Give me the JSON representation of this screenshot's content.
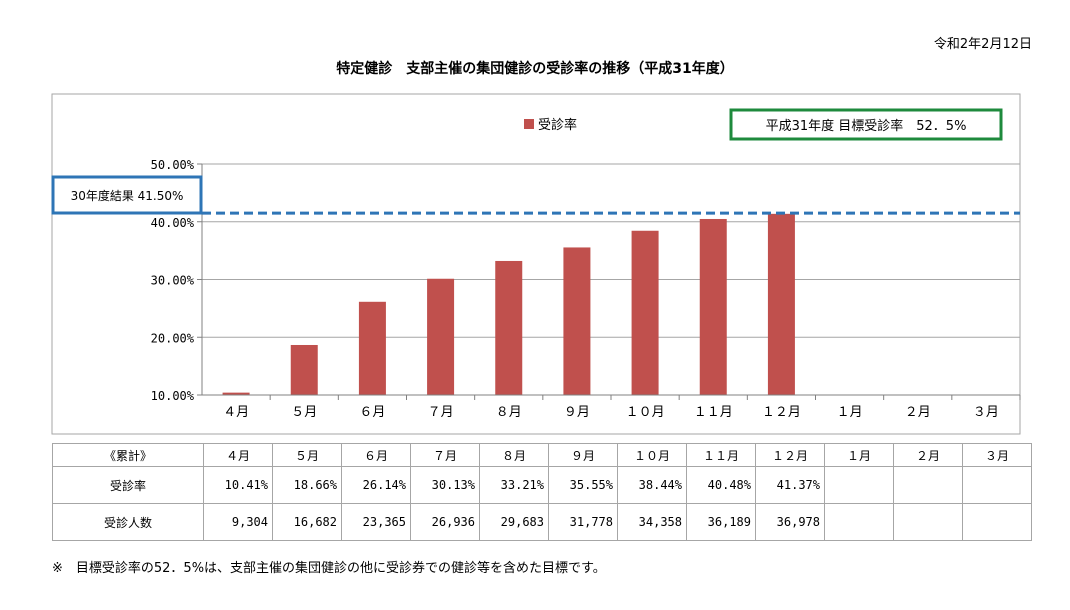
{
  "date": "令和2年2月12日",
  "title": "特定健診　支部主催の集団健診の受診率の推移（平成31年度）",
  "chart_data": {
    "type": "bar",
    "categories": [
      "４月",
      "５月",
      "６月",
      "７月",
      "８月",
      "９月",
      "１０月",
      "１１月",
      "１２月",
      "１月",
      "２月",
      "３月"
    ],
    "series": [
      {
        "name": "受診率",
        "values": [
          10.41,
          18.66,
          26.14,
          30.13,
          33.21,
          35.55,
          38.44,
          40.48,
          41.37,
          null,
          null,
          null
        ]
      }
    ],
    "ylim": [
      10,
      50
    ],
    "yticks": [
      10,
      20,
      30,
      40,
      50
    ],
    "ytick_labels": [
      "10.00%",
      "20.00%",
      "30.00%",
      "40.00%",
      "50.00%"
    ],
    "legend_position": "top",
    "grid": true,
    "reference_line": {
      "value": 41.5,
      "label": "30年度結果 41.50%",
      "style": "dashed"
    },
    "target_note": "平成31年度 目標受診率　52．5%",
    "colors": {
      "bar": "#c0504d",
      "reference": "#2e75b6",
      "target_box": "#1e8a3c",
      "label_box": "#2e75b6"
    }
  },
  "table": {
    "header": [
      "《累計》",
      "４月",
      "５月",
      "６月",
      "７月",
      "８月",
      "９月",
      "１０月",
      "１１月",
      "１２月",
      "１月",
      "２月",
      "３月"
    ],
    "rows": [
      {
        "label": "受診率",
        "values": [
          "10.41%",
          "18.66%",
          "26.14%",
          "30.13%",
          "33.21%",
          "35.55%",
          "38.44%",
          "40.48%",
          "41.37%",
          "",
          "",
          ""
        ]
      },
      {
        "label": "受診人数",
        "values": [
          "9,304",
          "16,682",
          "23,365",
          "26,936",
          "29,683",
          "31,778",
          "34,358",
          "36,189",
          "36,978",
          "",
          "",
          ""
        ]
      }
    ]
  },
  "footnote": "※　目標受診率の52．5%は、支部主催の集団健診の他に受診券での健診等を含めた目標です。"
}
